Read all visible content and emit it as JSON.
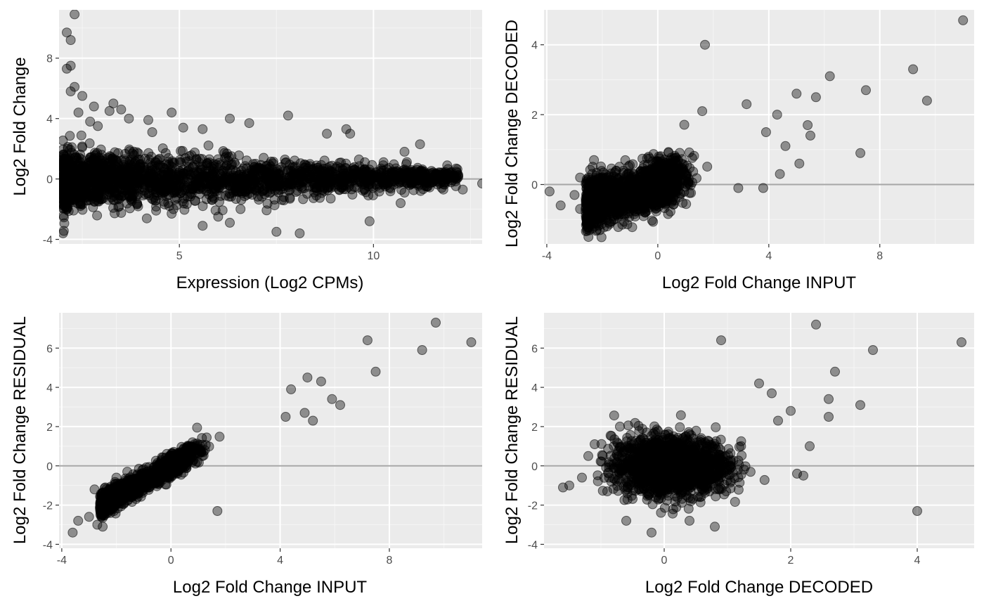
{
  "theme": {
    "panel_background": "#ebebeb",
    "grid_major": "#ffffff",
    "grid_minor": "#f5f5f5",
    "reference_line": "#a6a6a6",
    "point_fill": "rgba(0,0,0,0.4)",
    "point_stroke": "rgba(0,0,0,0.55)"
  },
  "chart_data": [
    {
      "type": "scatter",
      "xlabel": "Expression (Log2 CPMs)",
      "ylabel": "Log2 Fold Change",
      "xlim": [
        1.9,
        12.8
      ],
      "ylim": [
        -4.3,
        11.2
      ],
      "x_ticks": [
        5,
        10
      ],
      "y_ticks": [
        -4,
        0,
        4,
        8
      ],
      "hline": 0,
      "grid": true,
      "points": [
        [
          2.3,
          10.9
        ],
        [
          2.1,
          9.7
        ],
        [
          2.2,
          9.2
        ],
        [
          2.1,
          7.3
        ],
        [
          2.2,
          7.5
        ],
        [
          2.3,
          6.1
        ],
        [
          2.2,
          5.8
        ],
        [
          2.5,
          5.5
        ],
        [
          2.8,
          4.8
        ],
        [
          2.4,
          4.4
        ],
        [
          2.7,
          3.8
        ],
        [
          2.9,
          3.5
        ],
        [
          3.3,
          5.0
        ],
        [
          3.2,
          4.5
        ],
        [
          3.5,
          4.6
        ],
        [
          3.7,
          4.0
        ],
        [
          4.2,
          3.9
        ],
        [
          4.3,
          3.1
        ],
        [
          4.8,
          4.4
        ],
        [
          5.1,
          3.4
        ],
        [
          5.6,
          3.3
        ],
        [
          6.3,
          4.0
        ],
        [
          6.8,
          3.7
        ],
        [
          7.8,
          4.2
        ],
        [
          8.8,
          3.0
        ],
        [
          9.3,
          3.3
        ],
        [
          9.4,
          3.0
        ],
        [
          10.8,
          1.8
        ],
        [
          11.2,
          2.3
        ],
        [
          11.9,
          0.9
        ],
        [
          11.8,
          -0.7
        ],
        [
          12.3,
          -0.7
        ],
        [
          12.8,
          -0.3
        ],
        [
          11.4,
          -0.5
        ],
        [
          10.8,
          -0.9
        ],
        [
          10.7,
          -1.6
        ],
        [
          9.9,
          -2.8
        ],
        [
          8.1,
          -3.6
        ],
        [
          7.5,
          -3.5
        ],
        [
          6.3,
          -2.9
        ],
        [
          5.6,
          -3.1
        ],
        [
          4.8,
          -2.3
        ],
        [
          4.4,
          -2.1
        ],
        [
          6.0,
          -2.5
        ]
      ],
      "cloud": {
        "x": [
          2.0,
          12.2
        ],
        "spread_start": 2.2,
        "spread_end": 0.6,
        "n": 2200
      }
    },
    {
      "type": "scatter",
      "xlabel": "Log2 Fold Change INPUT",
      "ylabel": "Log2 Fold Change DECODED",
      "xlim": [
        -4.1,
        11.4
      ],
      "ylim": [
        -1.7,
        5.0
      ],
      "x_ticks": [
        -4,
        0,
        4,
        8
      ],
      "y_ticks": [
        0,
        2,
        4
      ],
      "hline": 0,
      "grid": true,
      "points": [
        [
          11.0,
          4.7
        ],
        [
          9.2,
          3.3
        ],
        [
          9.7,
          2.4
        ],
        [
          7.5,
          2.7
        ],
        [
          7.3,
          0.9
        ],
        [
          6.2,
          3.1
        ],
        [
          5.7,
          2.5
        ],
        [
          5.4,
          1.7
        ],
        [
          5.5,
          1.4
        ],
        [
          4.3,
          2.0
        ],
        [
          5.0,
          2.6
        ],
        [
          5.1,
          0.6
        ],
        [
          4.6,
          1.1
        ],
        [
          4.4,
          0.3
        ],
        [
          1.7,
          4.0
        ],
        [
          1.6,
          2.1
        ],
        [
          3.2,
          2.3
        ],
        [
          3.9,
          1.5
        ],
        [
          -3.9,
          -0.2
        ],
        [
          -3.5,
          -0.6
        ],
        [
          -3.0,
          -0.3
        ],
        [
          -2.8,
          -0.7
        ],
        [
          -2.5,
          -1.0
        ],
        [
          -2.5,
          -1.5
        ],
        [
          -2.2,
          -1.3
        ],
        [
          -2.3,
          0.7
        ],
        [
          -2.8,
          0.2
        ],
        [
          2.9,
          -0.1
        ],
        [
          3.8,
          -0.1
        ]
      ],
      "cloud": {
        "x": [
          -2.6,
          3.6
        ],
        "slope": 0.22,
        "spread": 0.5,
        "n": 1600
      }
    },
    {
      "type": "scatter",
      "xlabel": "Log2 Fold Change INPUT",
      "ylabel": "Log2 Fold Change RESIDUAL",
      "xlim": [
        -4.1,
        11.4
      ],
      "ylim": [
        -4.2,
        7.8
      ],
      "x_ticks": [
        -4,
        0,
        4,
        8
      ],
      "y_ticks": [
        -4,
        -2,
        0,
        2,
        4,
        6
      ],
      "hline": 0,
      "grid": true,
      "points": [
        [
          9.7,
          7.3
        ],
        [
          11.0,
          6.3
        ],
        [
          9.2,
          5.9
        ],
        [
          7.2,
          6.4
        ],
        [
          7.5,
          4.8
        ],
        [
          6.2,
          3.1
        ],
        [
          5.9,
          3.4
        ],
        [
          5.5,
          4.3
        ],
        [
          5.0,
          4.5
        ],
        [
          4.4,
          3.9
        ],
        [
          4.9,
          2.7
        ],
        [
          5.2,
          2.3
        ],
        [
          4.2,
          2.5
        ],
        [
          1.7,
          -2.3
        ],
        [
          -3.6,
          -3.4
        ],
        [
          -3.4,
          -2.8
        ],
        [
          -3.0,
          -2.6
        ],
        [
          -2.7,
          -3.0
        ],
        [
          -2.5,
          -3.1
        ],
        [
          -2.6,
          -2.1
        ],
        [
          -2.8,
          -1.2
        ],
        [
          -2.4,
          -1.1
        ],
        [
          -2.0,
          -0.6
        ],
        [
          -1.6,
          -0.3
        ]
      ],
      "cloud": {
        "x": [
          -2.6,
          3.8
        ],
        "slope": 0.78,
        "spread": 0.4,
        "n": 1500
      }
    },
    {
      "type": "scatter",
      "xlabel": "Log2 Fold Change DECODED",
      "ylabel": "Log2 Fold Change RESIDUAL",
      "xlim": [
        -1.9,
        4.9
      ],
      "ylim": [
        -4.2,
        7.8
      ],
      "x_ticks": [
        0,
        2,
        4
      ],
      "y_ticks": [
        -4,
        -2,
        0,
        2,
        4,
        6
      ],
      "hline": 0,
      "grid": true,
      "points": [
        [
          4.7,
          6.3
        ],
        [
          2.4,
          7.2
        ],
        [
          3.3,
          5.9
        ],
        [
          3.1,
          3.1
        ],
        [
          2.7,
          4.8
        ],
        [
          2.6,
          3.4
        ],
        [
          2.6,
          2.5
        ],
        [
          2.3,
          1.0
        ],
        [
          4.0,
          -2.3
        ],
        [
          0.9,
          6.4
        ],
        [
          1.5,
          4.2
        ],
        [
          1.7,
          3.7
        ],
        [
          2.0,
          2.8
        ],
        [
          2.1,
          -0.4
        ],
        [
          2.2,
          -0.5
        ],
        [
          1.8,
          2.3
        ],
        [
          -1.5,
          -1.0
        ],
        [
          -1.6,
          -1.1
        ],
        [
          -1.3,
          -0.6
        ],
        [
          -1.1,
          1.1
        ],
        [
          -1.2,
          0.5
        ],
        [
          -0.9,
          -1.3
        ],
        [
          -0.6,
          -2.8
        ],
        [
          -0.2,
          -3.4
        ],
        [
          0.4,
          -2.8
        ],
        [
          0.8,
          -3.1
        ],
        [
          -0.7,
          2.0
        ]
      ],
      "cloud": {
        "x": [
          -1.1,
          1.8
        ],
        "center": 0.1,
        "spread": 0.45,
        "yspread": 1.2,
        "n": 1600
      }
    }
  ]
}
